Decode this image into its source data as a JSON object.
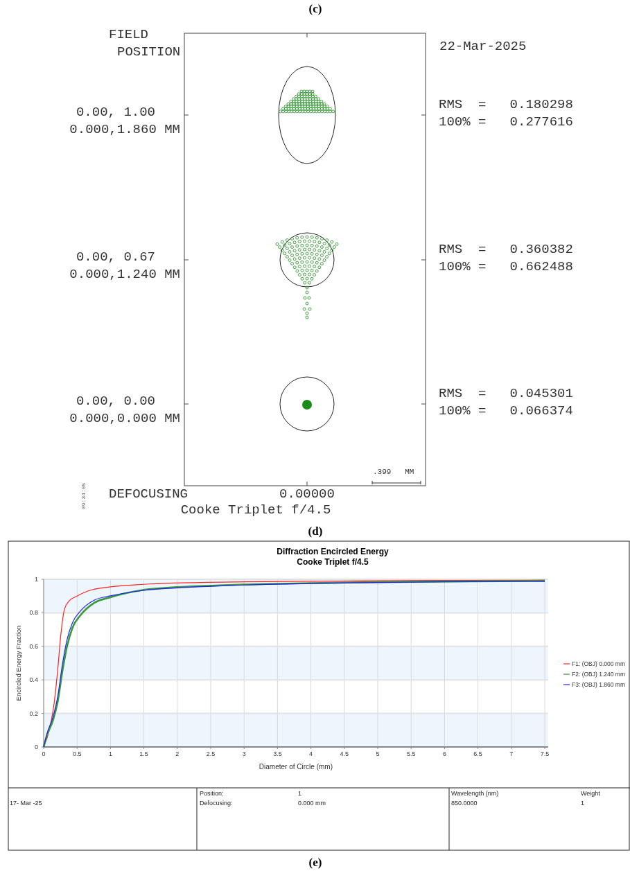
{
  "chart_data": [
    {
      "type": "other",
      "title": "Cooke Triplet f/4.5",
      "annotations": [
        "(c)",
        "FIELD\nPOSITION",
        "22-Mar-2025",
        "0.00, 1.00\n0.000,1.860 MM",
        "0.00, 0.67\n0.000,1.240 MM",
        "0.00, 0.00\n0.000,0.000 MM",
        "RMS  =   0.180298\n100% =   0.277616",
        "RMS  =   0.360382\n100% =   0.662488",
        "RMS  =   0.045301\n100% =   0.066374",
        "DEFOCUSING",
        "0.00000",
        ".399   MM",
        "09:34:05",
        "(d)"
      ]
    },
    {
      "type": "line",
      "title": "Diffraction Encircled Energy",
      "subtitle": "Cooke Triplet f/4.5",
      "xlabel": "Diameter of Circle (mm)",
      "ylabel": "Encircled Energy Fraction",
      "xlim": [
        0,
        7.55
      ],
      "xticks": [
        0,
        0.5,
        1,
        1.5,
        2,
        2.5,
        3,
        3.5,
        4,
        4.5,
        5,
        5.5,
        6,
        6.5,
        7,
        7.5
      ],
      "ylim": [
        0,
        1
      ],
      "yticks": [
        0,
        0.2,
        0.4,
        0.6,
        0.8,
        1
      ],
      "grid": true,
      "legend": "right",
      "bands": [
        {
          "axis": "y",
          "from": 0,
          "to": 0.2,
          "color": "#eef6fd"
        },
        {
          "axis": "y",
          "from": 0.4,
          "to": 0.6,
          "color": "#eef6fd"
        },
        {
          "axis": "y",
          "from": 0.8,
          "to": 1,
          "color": "#eef6fd"
        }
      ],
      "series": [
        {
          "name": "F1: (OBJ) 0.000 mm",
          "color": "#ff2020",
          "x": [
            0,
            0.09,
            0.16,
            0.21,
            0.26,
            0.31,
            0.38,
            0.5,
            0.66,
            1,
            1.5,
            2,
            3,
            4,
            5,
            6,
            7.5
          ],
          "values": [
            0,
            0.11,
            0.27,
            0.46,
            0.68,
            0.82,
            0.87,
            0.9,
            0.93,
            0.955,
            0.97,
            0.978,
            0.985,
            0.988,
            0.991,
            0.993,
            0.995
          ]
        },
        {
          "name": "F2: (OBJ) 1.240 mm",
          "color": "#3a9a3a",
          "x": [
            0,
            0.05,
            0.14,
            0.21,
            0.28,
            0.35,
            0.43,
            0.55,
            0.76,
            1,
            1.5,
            2,
            2.5,
            3,
            4,
            5,
            6,
            7.5
          ],
          "values": [
            0,
            0.07,
            0.16,
            0.27,
            0.45,
            0.6,
            0.71,
            0.785,
            0.86,
            0.893,
            0.937,
            0.953,
            0.962,
            0.969,
            0.977,
            0.983,
            0.987,
            0.99
          ]
        },
        {
          "name": "F3: (OBJ) 1.860 mm",
          "color": "#2020ff",
          "x": [
            0,
            0.05,
            0.14,
            0.21,
            0.28,
            0.35,
            0.43,
            0.55,
            0.76,
            1,
            1.5,
            2,
            2.5,
            3,
            4,
            5,
            6,
            7.5
          ],
          "values": [
            0,
            0.08,
            0.18,
            0.3,
            0.49,
            0.64,
            0.74,
            0.81,
            0.876,
            0.901,
            0.934,
            0.949,
            0.958,
            0.966,
            0.975,
            0.981,
            0.985,
            0.988
          ]
        }
      ],
      "annotations": [
        "17- Mar -25",
        "Position:",
        "1",
        "Defocusing:",
        "0.000 mm",
        "Wavelength (nm)",
        "850.0000",
        "Weight",
        "1",
        "(e)"
      ]
    }
  ]
}
